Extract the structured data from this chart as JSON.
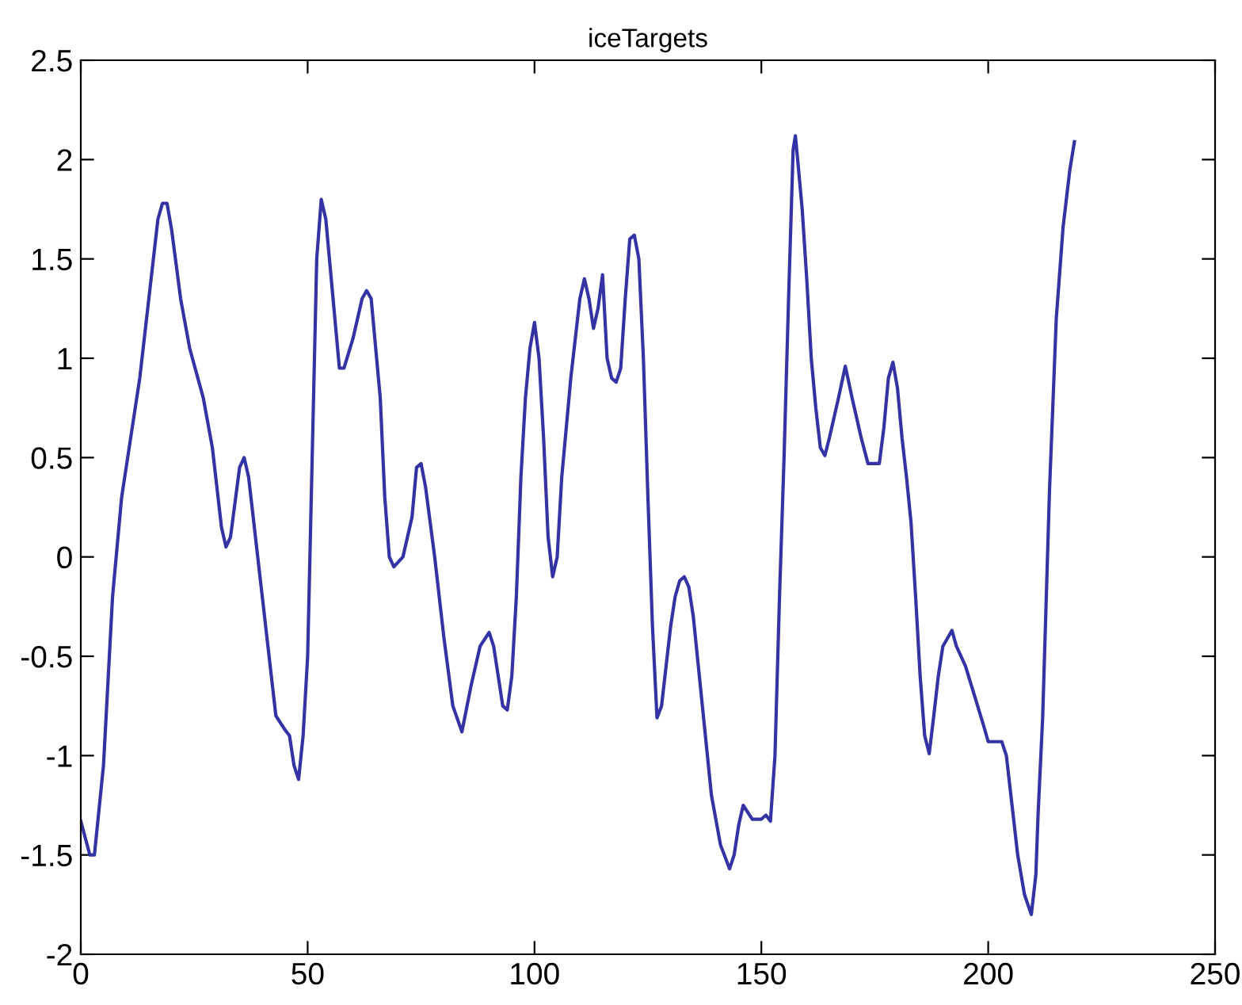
{
  "chart_data": {
    "type": "line",
    "title": "iceTargets",
    "x": [
      0,
      2,
      3,
      5,
      7,
      9,
      11,
      13,
      15,
      17,
      18,
      19,
      20,
      22,
      24,
      27,
      29,
      31,
      32,
      33,
      35,
      36,
      37,
      39,
      41,
      43,
      45,
      46,
      47,
      48,
      49,
      50,
      51,
      52,
      53,
      54,
      56,
      57,
      58,
      60,
      62,
      63,
      64,
      66,
      67,
      68,
      69,
      71,
      73,
      74,
      75,
      76,
      78,
      80,
      82,
      84,
      86,
      88,
      90,
      91,
      93,
      94,
      95,
      96,
      97,
      98,
      99,
      100,
      101,
      102,
      103,
      104,
      105,
      106,
      108,
      110,
      111,
      112,
      113,
      114,
      115,
      116,
      117,
      118,
      119,
      120,
      121,
      122,
      123,
      124,
      125,
      126,
      127,
      128,
      129,
      130,
      131,
      132,
      133,
      134,
      135,
      137,
      139,
      141,
      143,
      144,
      145,
      146,
      148,
      150,
      151,
      152,
      153,
      154,
      155,
      156,
      157,
      157.5,
      158,
      159,
      160,
      161,
      162,
      163,
      164,
      165,
      167,
      168.5,
      170,
      172,
      173.5,
      176,
      177,
      178,
      179,
      180,
      181,
      182,
      183,
      184,
      185,
      186,
      187,
      188,
      189,
      190,
      192,
      193,
      195,
      197,
      199,
      200,
      203,
      204,
      205,
      206.5,
      208,
      209.5,
      210.5,
      211,
      212,
      213.5,
      215,
      216.5,
      218,
      219
    ],
    "series": [
      {
        "color": "#3333a6",
        "values": [
          -1.33,
          -1.5,
          -1.5,
          -1.05,
          -0.2,
          0.3,
          0.6,
          0.9,
          1.3,
          1.7,
          1.78,
          1.78,
          1.65,
          1.3,
          1.05,
          0.8,
          0.55,
          0.15,
          0.05,
          0.1,
          0.45,
          0.5,
          0.4,
          0.0,
          -0.4,
          -0.8,
          -0.87,
          -0.9,
          -1.05,
          -1.12,
          -0.9,
          -0.5,
          0.5,
          1.5,
          1.8,
          1.7,
          1.2,
          0.95,
          0.95,
          1.1,
          1.3,
          1.34,
          1.3,
          0.8,
          0.3,
          0.0,
          -0.05,
          0.0,
          0.2,
          0.45,
          0.47,
          0.35,
          0.0,
          -0.4,
          -0.75,
          -0.88,
          -0.65,
          -0.45,
          -0.38,
          -0.45,
          -0.75,
          -0.77,
          -0.6,
          -0.2,
          0.4,
          0.8,
          1.05,
          1.18,
          1.0,
          0.6,
          0.1,
          -0.1,
          0.0,
          0.4,
          0.9,
          1.3,
          1.4,
          1.3,
          1.15,
          1.25,
          1.42,
          1.0,
          0.9,
          0.88,
          0.95,
          1.3,
          1.6,
          1.62,
          1.5,
          1.0,
          0.3,
          -0.35,
          -0.81,
          -0.75,
          -0.55,
          -0.35,
          -0.2,
          -0.12,
          -0.1,
          -0.15,
          -0.3,
          -0.75,
          -1.2,
          -1.45,
          -1.57,
          -1.5,
          -1.35,
          -1.25,
          -1.32,
          -1.32,
          -1.3,
          -1.33,
          -1.0,
          -0.2,
          0.5,
          1.3,
          2.05,
          2.12,
          2.0,
          1.75,
          1.4,
          1.0,
          0.75,
          0.55,
          0.51,
          0.6,
          0.8,
          0.96,
          0.8,
          0.6,
          0.47,
          0.47,
          0.65,
          0.9,
          0.98,
          0.85,
          0.6,
          0.4,
          0.17,
          -0.2,
          -0.6,
          -0.9,
          -0.99,
          -0.8,
          -0.6,
          -0.45,
          -0.37,
          -0.45,
          -0.55,
          -0.7,
          -0.85,
          -0.93,
          -0.93,
          -1.0,
          -1.2,
          -1.5,
          -1.7,
          -1.8,
          -1.6,
          -1.29,
          -0.81,
          0.33,
          1.2,
          1.66,
          1.95,
          2.09
        ]
      }
    ],
    "xlim": [
      0,
      250
    ],
    "ylim": [
      -2,
      2.5
    ],
    "xticks": [
      0,
      50,
      100,
      150,
      200,
      250
    ],
    "yticks": [
      -2,
      -1.5,
      -1,
      -0.5,
      0,
      0.5,
      1,
      1.5,
      2,
      2.5
    ],
    "grid": false,
    "legend": false
  }
}
